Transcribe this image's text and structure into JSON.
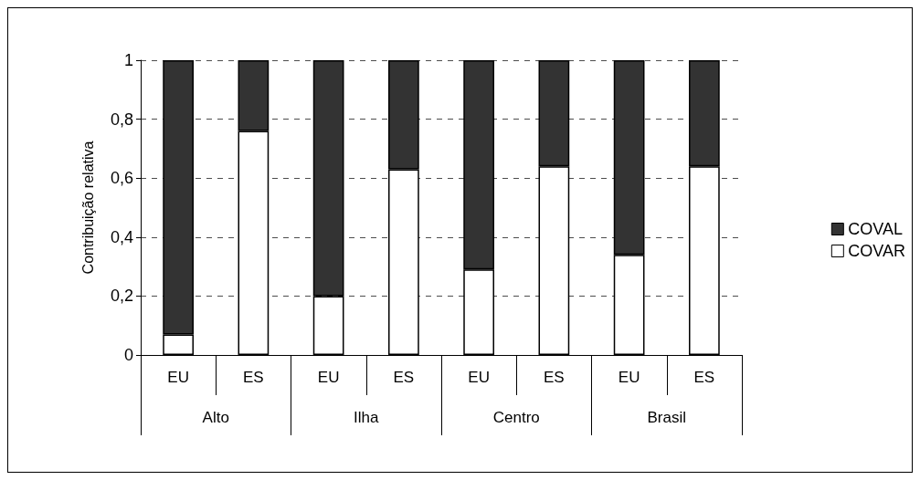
{
  "chart_data": {
    "type": "bar",
    "stacked": true,
    "ylabel": "Contribuição relativa",
    "categories": [
      "EU",
      "ES",
      "EU",
      "ES",
      "EU",
      "ES",
      "EU",
      "ES"
    ],
    "annotations": [
      "Alto",
      "Ilha",
      "Centro",
      "Brasil"
    ],
    "series": [
      {
        "name": "COVAR",
        "color": "#ffffff",
        "values": [
          0.07,
          0.76,
          0.2,
          0.63,
          0.29,
          0.64,
          0.34,
          0.64
        ]
      },
      {
        "name": "COVAL",
        "color": "#333333",
        "values": [
          0.93,
          0.24,
          0.8,
          0.37,
          0.71,
          0.36,
          0.66,
          0.36
        ]
      }
    ],
    "ylim": [
      0,
      1
    ],
    "yticks": [
      0,
      {
        "value": 0.2,
        "label": "0,2"
      },
      {
        "value": 0.4,
        "label": "0,4"
      },
      {
        "value": 0.6,
        "label": "0,6"
      },
      {
        "value": 0.8,
        "label": "0,8"
      },
      1
    ],
    "grid": "y",
    "legend": "right"
  }
}
